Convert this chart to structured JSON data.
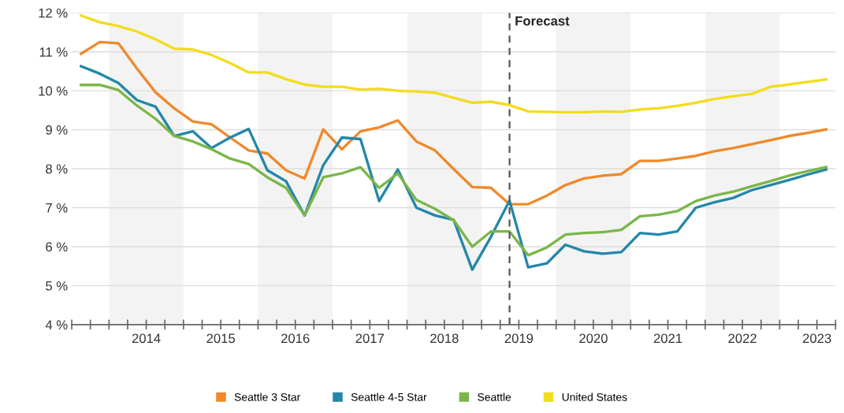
{
  "chart_data": {
    "type": "line",
    "x": [
      2013.625,
      2013.875,
      2014.125,
      2014.375,
      2014.625,
      2014.875,
      2015.125,
      2015.375,
      2015.625,
      2015.875,
      2016.125,
      2016.375,
      2016.625,
      2016.875,
      2017.125,
      2017.375,
      2017.625,
      2017.875,
      2018.125,
      2018.375,
      2018.625,
      2018.875,
      2019.125,
      2019.375,
      2019.625,
      2019.875,
      2020.125,
      2020.375,
      2020.625,
      2020.875,
      2021.125,
      2021.375,
      2021.625,
      2021.875,
      2022.125,
      2022.375,
      2022.625,
      2022.875,
      2023.125,
      2023.375,
      2023.625
    ],
    "series": [
      {
        "name": "Seattle 3 Star",
        "color": "#f0892b",
        "values": [
          10.95,
          11.25,
          11.22,
          10.57,
          9.96,
          9.55,
          9.21,
          9.14,
          8.8,
          8.47,
          8.39,
          7.96,
          7.75,
          9.01,
          8.5,
          8.96,
          9.06,
          9.24,
          8.7,
          8.47,
          7.99,
          7.53,
          7.51,
          7.09,
          7.09,
          7.31,
          7.58,
          7.75,
          7.82,
          7.86,
          8.2,
          8.2,
          8.26,
          8.33,
          8.45,
          8.53,
          8.63,
          8.73,
          8.84,
          8.92,
          9.01
        ]
      },
      {
        "name": "Seattle 4-5 Star",
        "color": "#2487a8",
        "values": [
          10.63,
          10.44,
          10.2,
          9.76,
          9.59,
          8.84,
          8.96,
          8.53,
          8.8,
          9.02,
          7.96,
          7.68,
          6.8,
          8.09,
          8.8,
          8.76,
          7.17,
          7.98,
          7.0,
          6.8,
          6.69,
          5.41,
          6.25,
          7.18,
          5.47,
          5.57,
          6.05,
          5.88,
          5.82,
          5.86,
          6.35,
          6.31,
          6.39,
          7.0,
          7.14,
          7.25,
          7.45,
          7.58,
          7.71,
          7.85,
          7.98
        ]
      },
      {
        "name": "Seattle",
        "color": "#7ab648",
        "values": [
          10.15,
          10.15,
          10.02,
          9.62,
          9.28,
          8.84,
          8.7,
          8.5,
          8.26,
          8.12,
          7.78,
          7.51,
          6.8,
          7.78,
          7.88,
          8.04,
          7.51,
          7.88,
          7.2,
          6.97,
          6.68,
          6.0,
          6.39,
          6.39,
          5.78,
          5.98,
          6.31,
          6.35,
          6.37,
          6.43,
          6.78,
          6.82,
          6.91,
          7.17,
          7.31,
          7.41,
          7.55,
          7.68,
          7.82,
          7.94,
          8.04
        ]
      },
      {
        "name": "United States",
        "color": "#f3dc1c",
        "values": [
          11.93,
          11.76,
          11.66,
          11.52,
          11.32,
          11.08,
          11.06,
          10.92,
          10.71,
          10.47,
          10.47,
          10.3,
          10.16,
          10.1,
          10.1,
          10.03,
          10.05,
          10.0,
          9.98,
          9.95,
          9.82,
          9.69,
          9.72,
          9.63,
          9.47,
          9.46,
          9.45,
          9.45,
          9.47,
          9.46,
          9.52,
          9.55,
          9.61,
          9.69,
          9.79,
          9.86,
          9.92,
          10.1,
          10.16,
          10.23,
          10.29
        ]
      }
    ],
    "xlim": [
      2013.5,
      2023.75
    ],
    "xticks": [
      {
        "value": 2013.5,
        "label": null
      },
      {
        "value": 2013.75,
        "label": null
      },
      {
        "value": 2014,
        "label": null
      },
      {
        "value": 2014.25,
        "label": null
      },
      {
        "value": 2014.5,
        "label": "2014"
      },
      {
        "value": 2014.75,
        "label": null
      },
      {
        "value": 2015,
        "label": null
      },
      {
        "value": 2015.25,
        "label": null
      },
      {
        "value": 2015.5,
        "label": "2015"
      },
      {
        "value": 2015.75,
        "label": null
      },
      {
        "value": 2016,
        "label": null
      },
      {
        "value": 2016.25,
        "label": null
      },
      {
        "value": 2016.5,
        "label": "2016"
      },
      {
        "value": 2016.75,
        "label": null
      },
      {
        "value": 2017,
        "label": null
      },
      {
        "value": 2017.25,
        "label": null
      },
      {
        "value": 2017.5,
        "label": "2017"
      },
      {
        "value": 2017.75,
        "label": null
      },
      {
        "value": 2018,
        "label": null
      },
      {
        "value": 2018.25,
        "label": null
      },
      {
        "value": 2018.5,
        "label": "2018"
      },
      {
        "value": 2018.75,
        "label": null
      },
      {
        "value": 2019,
        "label": null
      },
      {
        "value": 2019.25,
        "label": null
      },
      {
        "value": 2019.5,
        "label": "2019"
      },
      {
        "value": 2019.75,
        "label": null
      },
      {
        "value": 2020,
        "label": null
      },
      {
        "value": 2020.25,
        "label": null
      },
      {
        "value": 2020.5,
        "label": "2020"
      },
      {
        "value": 2020.75,
        "label": null
      },
      {
        "value": 2021,
        "label": null
      },
      {
        "value": 2021.25,
        "label": null
      },
      {
        "value": 2021.5,
        "label": "2021"
      },
      {
        "value": 2021.75,
        "label": null
      },
      {
        "value": 2022,
        "label": null
      },
      {
        "value": 2022.25,
        "label": null
      },
      {
        "value": 2022.5,
        "label": "2022"
      },
      {
        "value": 2022.75,
        "label": null
      },
      {
        "value": 2023,
        "label": null
      },
      {
        "value": 2023.25,
        "label": null
      },
      {
        "value": 2023.5,
        "label": "2023"
      },
      {
        "value": 2023.75,
        "label": null
      }
    ],
    "ylim": [
      4,
      12
    ],
    "yticks": [
      {
        "value": 4,
        "label": "4 %"
      },
      {
        "value": 5,
        "label": "5 %"
      },
      {
        "value": 6,
        "label": "6 %"
      },
      {
        "value": 7,
        "label": "7 %"
      },
      {
        "value": 8,
        "label": "8 %"
      },
      {
        "value": 9,
        "label": "9 %"
      },
      {
        "value": 10,
        "label": "10 %"
      },
      {
        "value": 11,
        "label": "11 %"
      },
      {
        "value": 12,
        "label": "12 %"
      }
    ],
    "bands": [
      {
        "axis": "x",
        "from": 2014,
        "to": 2015,
        "label": null,
        "color": "#f3f3f3"
      },
      {
        "axis": "x",
        "from": 2016,
        "to": 2017,
        "label": null,
        "color": "#f3f3f3"
      },
      {
        "axis": "x",
        "from": 2018,
        "to": 2019,
        "label": null,
        "color": "#f3f3f3"
      },
      {
        "axis": "x",
        "from": 2020,
        "to": 2021,
        "label": null,
        "color": "#f3f3f3"
      },
      {
        "axis": "x",
        "from": 2022,
        "to": 2023,
        "label": null,
        "color": "#f3f3f3"
      }
    ],
    "ref_lines": [
      {
        "axis": "x",
        "value": 2019.375,
        "label": "Forecast",
        "color": "#555555",
        "line_style": "dashed"
      }
    ],
    "grid": "y",
    "legend": "bottom",
    "marker": "none",
    "line_style": "solid"
  }
}
